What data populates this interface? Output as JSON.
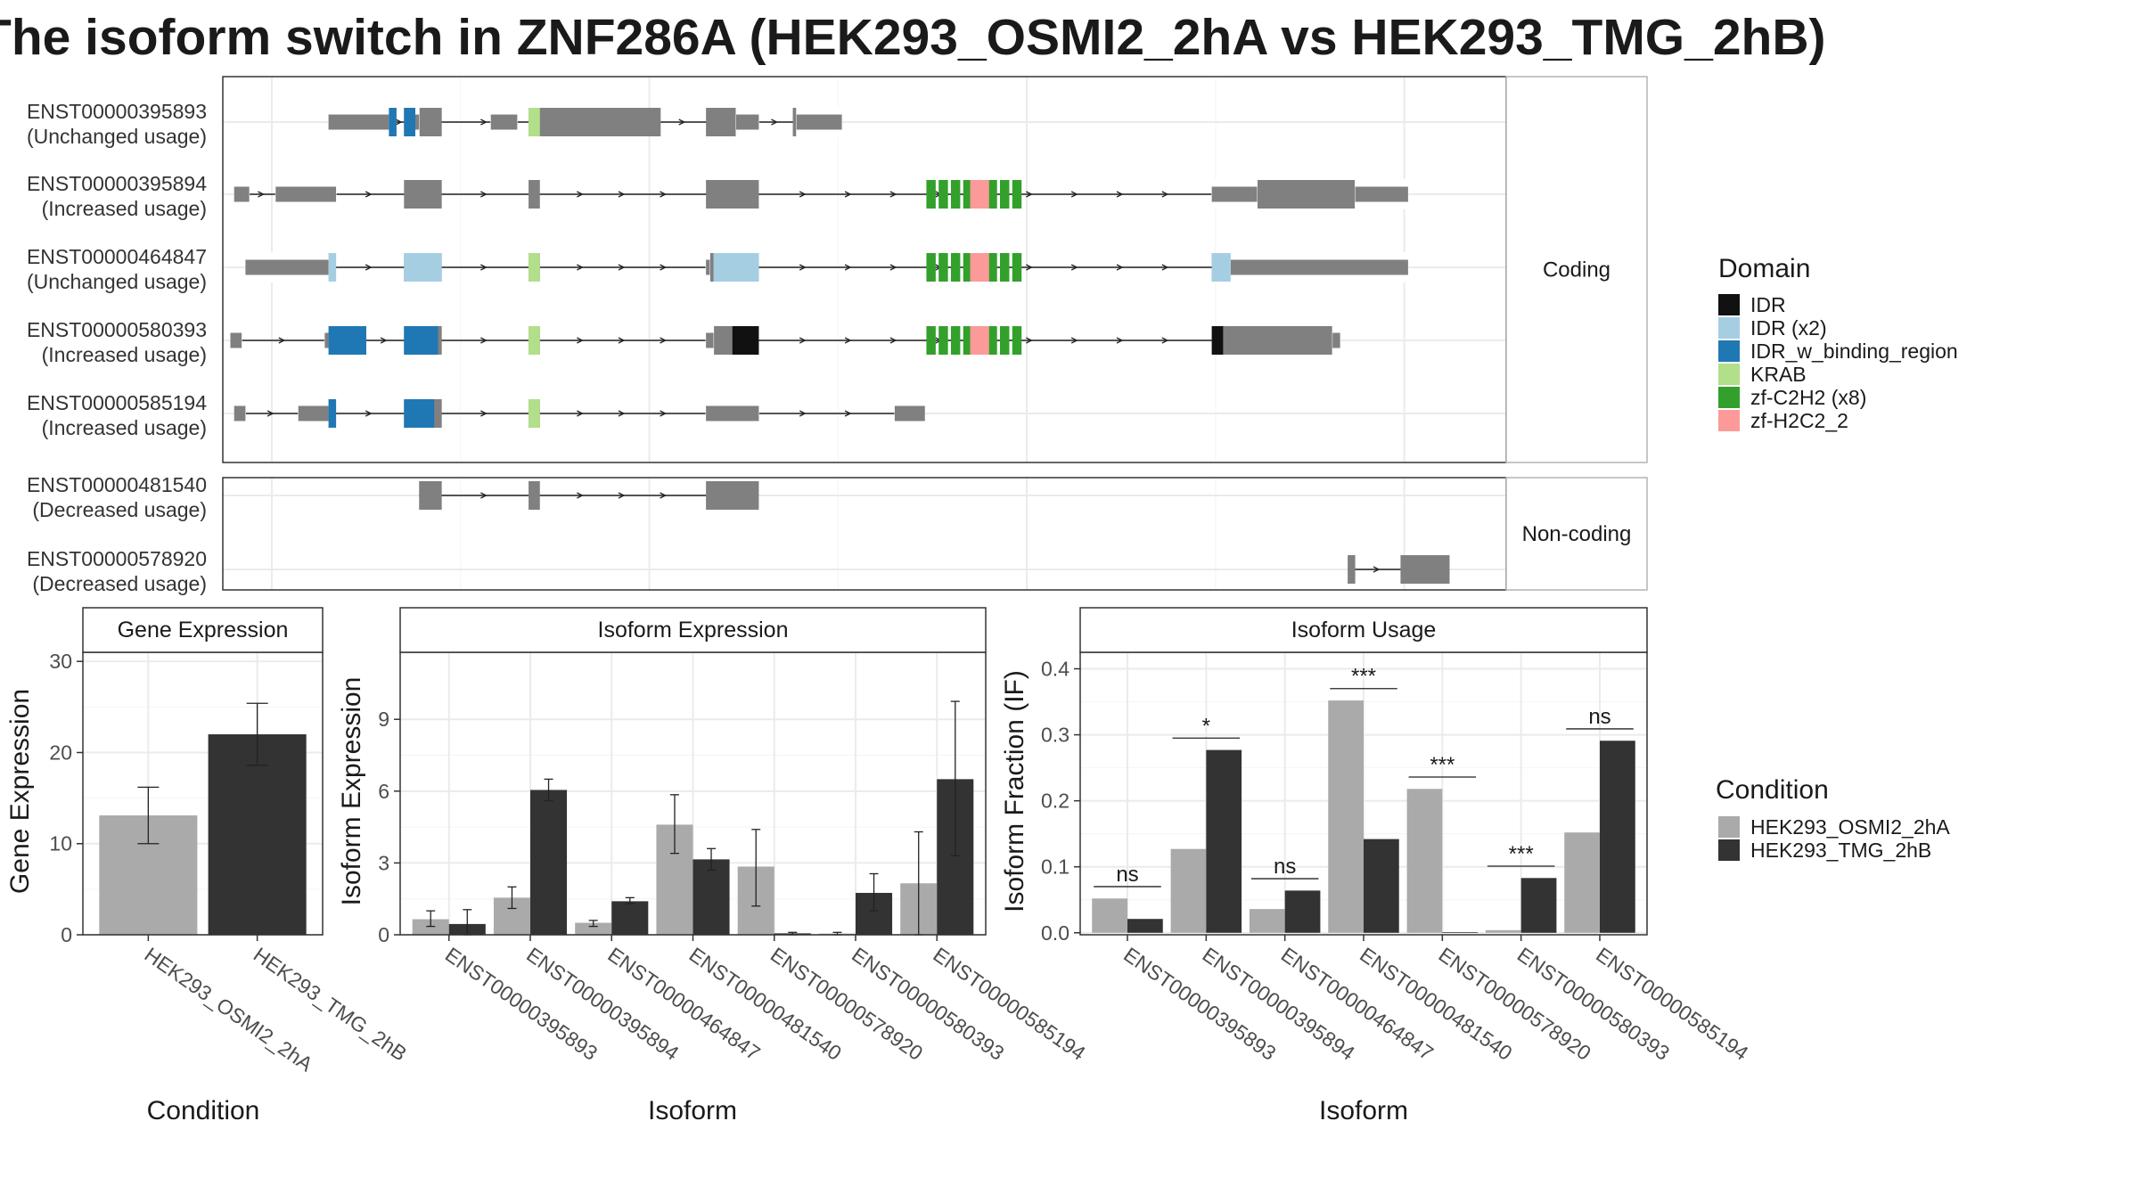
{
  "title": "The isoform switch in ZNF286A (HEK293_OSMI2_2hA vs HEK293_TMG_2hB)",
  "structure_panel": {
    "groups": [
      {
        "label": "Coding",
        "transcripts": [
          {
            "id": "ENST00000395893",
            "usage": "(Unchanged usage)",
            "exons": [
              [
                28,
                46
              ],
              [
                48,
                58
              ],
              [
                81,
                116
              ],
              [
                128,
                142
              ],
              [
                151,
                164
              ]
            ],
            "utr": [
              [
                28,
                44
              ],
              [
                51,
                52
              ],
              [
                71,
                78
              ],
              [
                136,
                142
              ],
              [
                152,
                164
              ]
            ],
            "domains": [
              [
                44,
                46,
                "IDR_w_binding_region"
              ],
              [
                48,
                51,
                "IDR_w_binding_region"
              ],
              [
                81,
                84,
                "KRAB"
              ]
            ]
          },
          {
            "id": "ENST00000395894",
            "usage": "(Increased usage)",
            "exons": [
              [
                3,
                7
              ],
              [
                14,
                30
              ],
              [
                48,
                58
              ],
              [
                81,
                84
              ],
              [
                128,
                142
              ],
              [
                262,
                314
              ]
            ],
            "utr": [
              [
                3,
                7
              ],
              [
                14,
                30
              ],
              [
                262,
                274
              ],
              [
                300,
                314
              ]
            ],
            "domains": [
              [
                186,
                212,
                "zf-C2H2"
              ],
              [
                198,
                203,
                "zf-H2C2_2"
              ]
            ]
          },
          {
            "id": "ENST00000464847",
            "usage": "(Unchanged usage)",
            "exons": [
              [
                6,
                30
              ],
              [
                48,
                58
              ],
              [
                81,
                84
              ],
              [
                128,
                142
              ],
              [
                262,
                314
              ]
            ],
            "utr": [
              [
                6,
                28
              ],
              [
                128,
                129
              ],
              [
                267,
                314
              ]
            ],
            "domains": [
              [
                28,
                30,
                "IDR"
              ],
              [
                48,
                58,
                "IDR"
              ],
              [
                81,
                84,
                "KRAB"
              ],
              [
                130,
                142,
                "IDR"
              ],
              [
                262,
                267,
                "IDR"
              ],
              [
                186,
                212,
                "zf-C2H2"
              ],
              [
                198,
                203,
                "zf-H2C2_2"
              ]
            ]
          },
          {
            "id": "ENST00000580393",
            "usage": "(Increased usage)",
            "exons": [
              [
                2,
                5
              ],
              [
                27,
                38
              ],
              [
                48,
                58
              ],
              [
                81,
                84
              ],
              [
                128,
                142
              ],
              [
                262,
                296
              ]
            ],
            "utr": [
              [
                2,
                5
              ],
              [
                27,
                28
              ],
              [
                128,
                130
              ],
              [
                294,
                296
              ]
            ],
            "domains": [
              [
                28,
                38,
                "IDR_w_binding_region"
              ],
              [
                48,
                57,
                "IDR_w_binding_region"
              ],
              [
                81,
                84,
                "KRAB"
              ],
              [
                135,
                142,
                "IDR"
              ],
              [
                262,
                265,
                "IDR"
              ],
              [
                186,
                212,
                "zf-C2H2"
              ],
              [
                198,
                203,
                "zf-H2C2_2"
              ]
            ]
          },
          {
            "id": "ENST00000585194",
            "usage": "(Increased usage)",
            "exons": [
              [
                3,
                6
              ],
              [
                20,
                30
              ],
              [
                48,
                58
              ],
              [
                81,
                84
              ],
              [
                128,
                142
              ],
              [
                178,
                186
              ]
            ],
            "utr": [
              [
                3,
                6
              ],
              [
                20,
                28
              ],
              [
                128,
                142
              ],
              [
                178,
                186
              ]
            ],
            "domains": [
              [
                28,
                30,
                "IDR_w_binding_region"
              ],
              [
                48,
                56,
                "IDR_w_binding_region"
              ],
              [
                81,
                84,
                "KRAB"
              ]
            ]
          }
        ]
      },
      {
        "label": "Non-coding",
        "transcripts": [
          {
            "id": "ENST00000481540",
            "usage": "(Decreased usage)",
            "exons": [
              [
                52,
                58
              ],
              [
                81,
                84
              ],
              [
                128,
                142
              ]
            ],
            "utr": [],
            "domains": []
          },
          {
            "id": "ENST00000578920",
            "usage": "(Decreased usage)",
            "exons": [
              [
                298,
                300
              ],
              [
                312,
                325
              ]
            ],
            "utr": [],
            "domains": []
          }
        ]
      }
    ],
    "legend_title": "Domain",
    "legend": [
      {
        "label": "IDR",
        "color": "#111111"
      },
      {
        "label": "IDR (x2)",
        "color": "#a6cee3"
      },
      {
        "label": "IDR_w_binding_region",
        "color": "#1f78b4"
      },
      {
        "label": "KRAB",
        "color": "#b2df8a"
      },
      {
        "label": "zf-C2H2 (x8)",
        "color": "#33a02c"
      },
      {
        "label": "zf-H2C2_2",
        "color": "#fb9a99"
      }
    ],
    "utr_color": "#808080"
  },
  "condition_legend": {
    "title": "Condition",
    "items": [
      {
        "label": "HEK293_OSMI2_2hA",
        "color": "#aaaaaa"
      },
      {
        "label": "HEK293_TMG_2hB",
        "color": "#333333"
      }
    ]
  },
  "chart_data": [
    {
      "type": "bar",
      "title": "Gene Expression",
      "xlabel": "Condition",
      "ylabel": "Gene Expression",
      "ylim": [
        0,
        31
      ],
      "yticks": [
        0,
        10,
        20,
        30
      ],
      "categories": [
        "HEK293_OSMI2_2hA",
        "HEK293_TMG_2hB"
      ],
      "values": [
        13.1,
        22.0
      ],
      "error": [
        [
          10.0,
          16.2
        ],
        [
          18.6,
          25.4
        ]
      ],
      "colors": [
        "#aaaaaa",
        "#333333"
      ]
    },
    {
      "type": "bar",
      "title": "Isoform Expression",
      "xlabel": "Isoform",
      "ylabel": "Isoform Expression",
      "ylim": [
        0,
        11.8
      ],
      "yticks": [
        0,
        3,
        6,
        9
      ],
      "categories": [
        "ENST00000395893",
        "ENST00000395894",
        "ENST00000464847",
        "ENST00000481540",
        "ENST00000578920",
        "ENST00000580393",
        "ENST00000585194"
      ],
      "series": [
        {
          "name": "HEK293_OSMI2_2hA",
          "color": "#aaaaaa",
          "values": [
            0.65,
            1.55,
            0.5,
            4.6,
            2.85,
            0.05,
            2.15
          ],
          "error": [
            [
              0.35,
              1.0
            ],
            [
              1.1,
              2.0
            ],
            [
              0.35,
              0.6
            ],
            [
              3.4,
              5.85
            ],
            [
              1.2,
              4.4
            ],
            [
              0.0,
              0.1
            ],
            [
              0.0,
              4.3
            ]
          ]
        },
        {
          "name": "HEK293_TMG_2hB",
          "color": "#333333",
          "values": [
            0.45,
            6.05,
            1.4,
            3.15,
            0.06,
            1.75,
            6.5
          ],
          "error": [
            [
              0.0,
              1.05
            ],
            [
              5.6,
              6.5
            ],
            [
              1.3,
              1.55
            ],
            [
              2.7,
              3.6
            ],
            [
              0.0,
              0.1
            ],
            [
              1.0,
              2.55
            ],
            [
              3.3,
              9.75
            ]
          ]
        }
      ]
    },
    {
      "type": "bar",
      "title": "Isoform Usage",
      "xlabel": "Isoform",
      "ylabel": "Isoform Fraction (IF)",
      "ylim": [
        -0.003,
        0.425
      ],
      "yticks": [
        0.0,
        0.1,
        0.2,
        0.3,
        0.4
      ],
      "categories": [
        "ENST00000395893",
        "ENST00000395894",
        "ENST00000464847",
        "ENST00000481540",
        "ENST00000578920",
        "ENST00000580393",
        "ENST00000585194"
      ],
      "series": [
        {
          "name": "HEK293_OSMI2_2hA",
          "color": "#aaaaaa",
          "values": [
            0.052,
            0.127,
            0.036,
            0.352,
            0.218,
            0.004,
            0.152
          ]
        },
        {
          "name": "HEK293_TMG_2hB",
          "color": "#333333",
          "values": [
            0.021,
            0.277,
            0.064,
            0.142,
            0.001,
            0.083,
            0.291
          ]
        }
      ],
      "significance": [
        {
          "label": "ns",
          "y": 0.07
        },
        {
          "label": "*",
          "y": 0.295
        },
        {
          "label": "ns",
          "y": 0.082
        },
        {
          "label": "***",
          "y": 0.37
        },
        {
          "label": "***",
          "y": 0.236
        },
        {
          "label": "***",
          "y": 0.101
        },
        {
          "label": "ns",
          "y": 0.309
        }
      ]
    }
  ]
}
